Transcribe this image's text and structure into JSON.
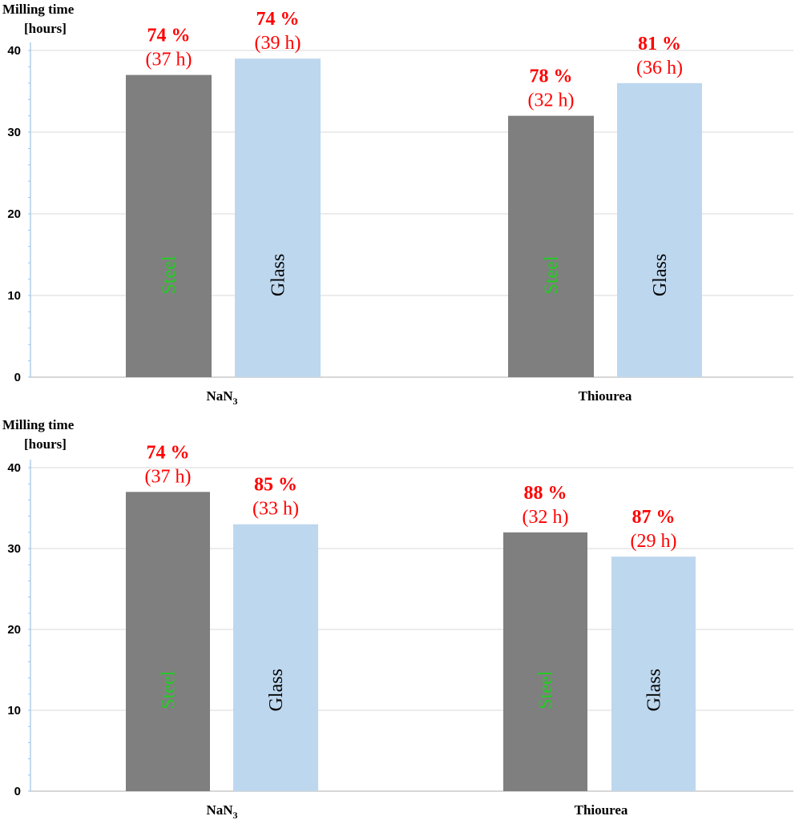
{
  "chart_data": [
    {
      "type": "bar",
      "ylabel_line1": "Milling time",
      "ylabel_line2": "[hours]",
      "ylim": [
        0,
        40
      ],
      "yticks": [
        0,
        10,
        20,
        30,
        40
      ],
      "grid": true,
      "categories": [
        {
          "label": "NaN",
          "sub": "3"
        },
        {
          "label": "Thiourea",
          "sub": ""
        }
      ],
      "series": [
        {
          "name": "Steel",
          "color": "#7f7f7f",
          "label_color": "#22cc22",
          "values": [
            37,
            32
          ],
          "pct_labels": [
            "74 %",
            "78 %"
          ],
          "hour_labels": [
            "(37 h)",
            "(32 h)"
          ]
        },
        {
          "name": "Glass",
          "color": "#bdd7ee",
          "label_color": "#000000",
          "values": [
            39,
            36
          ],
          "pct_labels": [
            "74 %",
            "81 %"
          ],
          "hour_labels": [
            "(39 h)",
            "(36 h)"
          ]
        }
      ]
    },
    {
      "type": "bar",
      "ylabel_line1": "Milling time",
      "ylabel_line2": "[hours]",
      "ylim": [
        0,
        40
      ],
      "yticks": [
        0,
        10,
        20,
        30,
        40
      ],
      "grid": true,
      "categories": [
        {
          "label": "NaN",
          "sub": "3"
        },
        {
          "label": "Thiourea",
          "sub": ""
        }
      ],
      "series": [
        {
          "name": "Steel",
          "color": "#7f7f7f",
          "label_color": "#22cc22",
          "values": [
            37,
            32
          ],
          "pct_labels": [
            "74 %",
            "88 %"
          ],
          "hour_labels": [
            "(37 h)",
            "(32 h)"
          ]
        },
        {
          "name": "Glass",
          "color": "#bdd7ee",
          "label_color": "#000000",
          "values": [
            33,
            29
          ],
          "pct_labels": [
            "85 %",
            "87 %"
          ],
          "hour_labels": [
            "(33 h)",
            "(29 h)"
          ]
        }
      ]
    }
  ]
}
